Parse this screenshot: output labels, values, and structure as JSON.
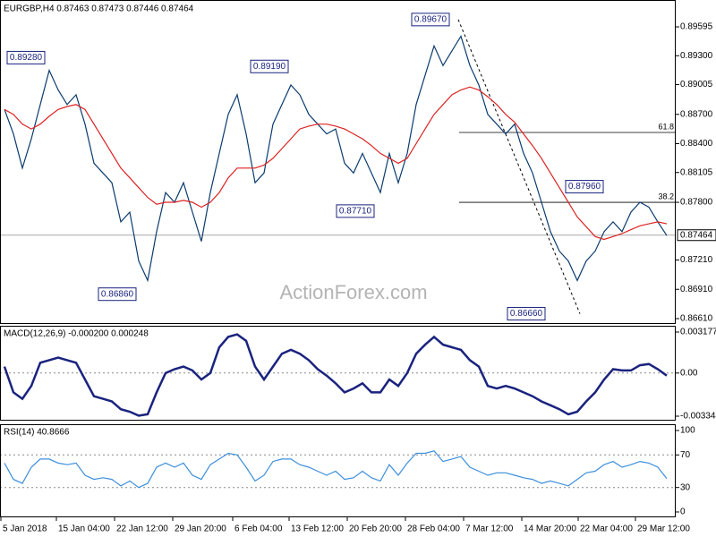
{
  "chart_data": [
    {
      "type": "line",
      "header": "EURGBP,H4  0.87463 0.87473 0.87446 0.87464",
      "watermark": "ActionForex.com",
      "xlim": [
        -0.5,
        75
      ],
      "ylim": [
        0.8987,
        0.86555
      ],
      "yticks": [
        0.89595,
        {
          "value": 0.893,
          "label": "0.89300"
        },
        0.89005,
        {
          "value": 0.887,
          "label": "0.88700"
        },
        {
          "value": 0.884,
          "label": "0.88400"
        },
        0.88105,
        {
          "value": 0.878,
          "label": "0.87800"
        },
        {
          "value": 0.8721,
          "label": "0.87210"
        },
        {
          "value": 0.8691,
          "label": "0.86910"
        },
        {
          "value": 0.8661,
          "label": "0.86610"
        }
      ],
      "last_price": 0.87464,
      "series": [
        {
          "color": "#0b3b6e",
          "values": [
            0.8875,
            0.885,
            0.8815,
            0.8845,
            0.888,
            0.8915,
            0.8895,
            0.888,
            0.889,
            0.886,
            0.882,
            0.881,
            0.88,
            0.876,
            0.877,
            0.872,
            0.87,
            0.875,
            0.879,
            0.878,
            0.88,
            0.877,
            0.874,
            0.879,
            0.883,
            0.887,
            0.889,
            0.885,
            0.88,
            0.881,
            0.886,
            0.888,
            0.89,
            0.889,
            0.887,
            0.886,
            0.885,
            0.8855,
            0.882,
            0.881,
            0.883,
            0.881,
            0.879,
            0.883,
            0.88,
            0.883,
            0.888,
            0.891,
            0.894,
            0.892,
            0.8935,
            0.895,
            0.892,
            0.89,
            0.887,
            0.886,
            0.885,
            0.886,
            0.883,
            0.881,
            0.878,
            0.875,
            0.873,
            0.872,
            0.87,
            0.872,
            0.873,
            0.875,
            0.876,
            0.875,
            0.877,
            0.878,
            0.8775,
            0.876,
            0.8746
          ]
        },
        {
          "color": "#dd2222",
          "values": [
            0.8875,
            0.887,
            0.886,
            0.8855,
            0.886,
            0.8868,
            0.8875,
            0.8878,
            0.888,
            0.8875,
            0.886,
            0.8845,
            0.883,
            0.8815,
            0.8805,
            0.8795,
            0.8785,
            0.8778,
            0.878,
            0.878,
            0.8782,
            0.878,
            0.8775,
            0.878,
            0.879,
            0.8805,
            0.8815,
            0.8815,
            0.8815,
            0.8818,
            0.8825,
            0.8835,
            0.8845,
            0.8855,
            0.8858,
            0.886,
            0.886,
            0.8858,
            0.8855,
            0.885,
            0.8845,
            0.8838,
            0.883,
            0.8825,
            0.882,
            0.8825,
            0.884,
            0.8855,
            0.887,
            0.888,
            0.889,
            0.8895,
            0.8898,
            0.8895,
            0.8888,
            0.888,
            0.887,
            0.8862,
            0.885,
            0.8838,
            0.8825,
            0.881,
            0.8795,
            0.878,
            0.8765,
            0.8755,
            0.8745,
            0.8742,
            0.8745,
            0.8748,
            0.8752,
            0.8756,
            0.8758,
            0.876,
            0.8758
          ]
        }
      ],
      "annotations": [
        {
          "label": "0.89280",
          "value": 0.8928,
          "x": 0.3
        },
        {
          "label": "0.89190",
          "value": 0.8919,
          "x": 27.5
        },
        {
          "label": "0.89670",
          "value": 0.8967,
          "x": 45.5
        },
        {
          "label": "0.87710",
          "value": 0.8771,
          "x": 37.1
        },
        {
          "label": "0.86860",
          "value": 0.8686,
          "x": 10.5
        },
        {
          "label": "0.87960",
          "value": 0.8796,
          "x": 62.7
        },
        {
          "label": "0.86660",
          "value": 0.8666,
          "x": 56.2
        }
      ],
      "fib_levels": [
        {
          "label": "61.8",
          "value": 0.88515,
          "x": 50.8
        },
        {
          "label": "38.2",
          "value": 0.878,
          "x": 50.8
        }
      ],
      "trendline": {
        "x": [
          50.7,
          64.3
        ],
        "values": [
          0.8967,
          0.8666
        ]
      }
    },
    {
      "type": "line",
      "title": "MACD(12,26,9) -0.000200 0.000248",
      "xlim": [
        -0.5,
        75
      ],
      "ylim": [
        0.003663,
        -0.003691
      ],
      "yticks": [
        0.003177,
        {
          "value": 0,
          "label": "0.00"
        },
        -0.003344
      ],
      "levels": [
        0
      ],
      "series": [
        {
          "color": "#1a237e",
          "values": [
            0.0005,
            -0.0015,
            -0.002,
            -0.001,
            0.0008,
            0.001,
            0.0012,
            0.001,
            0.0008,
            -0.0005,
            -0.0018,
            -0.002,
            -0.0022,
            -0.0028,
            -0.003,
            -0.0033,
            -0.0032,
            -0.0015,
            0,
            0.0003,
            0.0005,
            0.0002,
            -0.0005,
            0,
            0.002,
            0.0028,
            0.003,
            0.0025,
            0.0005,
            -0.0005,
            0.0005,
            0.0015,
            0.0018,
            0.0015,
            0.001,
            0.0003,
            -0.0002,
            -0.0008,
            -0.0015,
            -0.0012,
            -0.0008,
            -0.0015,
            -0.0015,
            -0.0005,
            -0.001,
            0,
            0.0015,
            0.0022,
            0.0028,
            0.0022,
            0.002,
            0.0018,
            0.001,
            0.0005,
            -0.001,
            -0.0012,
            -0.001,
            -0.0012,
            -0.0015,
            -0.0018,
            -0.0022,
            -0.0025,
            -0.0028,
            -0.0032,
            -0.003,
            -0.0022,
            -0.0015,
            -0.0005,
            0.0003,
            0.0002,
            0.0002,
            0.0006,
            0.0007,
            0.0003,
            -0.0002
          ]
        }
      ]
    },
    {
      "type": "line",
      "title": "RSI(14) 40.8666",
      "xlim": [
        -0.5,
        75
      ],
      "ylim": [
        107.7,
        -6.6
      ],
      "yticks": [
        100,
        70,
        30,
        0
      ],
      "levels": [
        70,
        30
      ],
      "xticks": [
        {
          "value": -0.4,
          "label": "5 Jan 2018"
        },
        {
          "value": 5.8,
          "label": "15 Jan 04:00"
        },
        {
          "value": 12.3,
          "label": "22 Jan 12:00"
        },
        {
          "value": 18.8,
          "label": "29 Jan 20:00"
        },
        {
          "value": 25.5,
          "label": "6 Feb 04:00"
        },
        {
          "value": 31.8,
          "label": "13 Feb 12:00"
        },
        {
          "value": 38.3,
          "label": "20 Feb 20:00"
        },
        {
          "value": 44.8,
          "label": "28 Feb 04:00"
        },
        {
          "value": 51.3,
          "label": "7 Mar 12:00"
        },
        {
          "value": 57.8,
          "label": "14 Mar 20:00"
        },
        {
          "value": 64.1,
          "label": "22 Mar 04:00"
        },
        {
          "value": 70.5,
          "label": "29 Mar 12:00"
        }
      ],
      "series": [
        {
          "color": "#3d8fdc",
          "values": [
            60,
            40,
            35,
            55,
            65,
            65,
            60,
            58,
            60,
            45,
            40,
            42,
            40,
            32,
            38,
            30,
            35,
            55,
            60,
            55,
            60,
            45,
            40,
            58,
            65,
            72,
            70,
            55,
            38,
            45,
            62,
            65,
            65,
            58,
            55,
            50,
            45,
            50,
            40,
            42,
            50,
            42,
            38,
            58,
            45,
            60,
            72,
            72,
            75,
            62,
            65,
            68,
            55,
            50,
            45,
            48,
            48,
            45,
            42,
            40,
            35,
            38,
            35,
            32,
            40,
            48,
            50,
            58,
            62,
            55,
            58,
            62,
            60,
            55,
            41
          ]
        }
      ]
    }
  ]
}
